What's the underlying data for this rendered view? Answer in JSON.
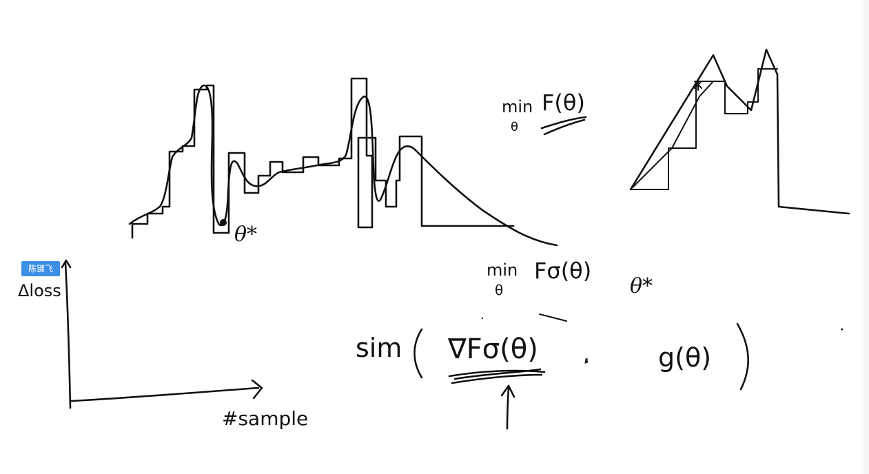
{
  "user_tag": "陈键飞",
  "labels": {
    "theta_star_left": "θ*",
    "min_top": "min",
    "theta_sub_top": "θ",
    "F_theta": "F(θ)",
    "min_mid": "min",
    "theta_sub_mid": "θ",
    "F_sigma_theta": "Fσ(θ)",
    "theta_star_mid": "θ*",
    "y_axis_label": "Δloss",
    "x_axis_label": "#sample",
    "sim": "sim",
    "grad_F_sigma": "∇Fσ(θ)",
    "comma": ",",
    "g_theta": "g(θ)"
  }
}
